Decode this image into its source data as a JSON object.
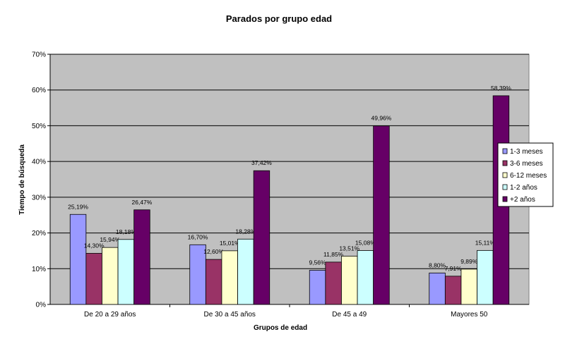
{
  "chart_data": {
    "type": "bar",
    "title": "Parados por grupo edad",
    "xlabel": "Grupos de edad",
    "ylabel": "Tiempo de búsqueda",
    "ylim": [
      0,
      70
    ],
    "yticks": [
      "0%",
      "10%",
      "20%",
      "30%",
      "40%",
      "50%",
      "60%",
      "70%"
    ],
    "grid": true,
    "legend_position": "right",
    "plot_background": "#c0c0c0",
    "categories": [
      "De 20 a 29 años",
      "De 30 a 45 años",
      "De 45 a 49",
      "Mayores 50"
    ],
    "series": [
      {
        "name": "1-3 meses",
        "color": "#9999ff",
        "values": [
          25.19,
          16.7,
          9.56,
          8.8
        ],
        "labels": [
          "25,19%",
          "16,70%",
          "9,56%",
          "8,80%"
        ]
      },
      {
        "name": "3-6 meses",
        "color": "#993366",
        "values": [
          14.3,
          12.6,
          11.85,
          7.91
        ],
        "labels": [
          "14,30%",
          "12,60%",
          "11,85%",
          "7,91%"
        ]
      },
      {
        "name": "6-12 meses",
        "color": "#ffffcc",
        "values": [
          15.94,
          15.01,
          13.51,
          9.89
        ],
        "labels": [
          "15,94%",
          "15,01%",
          "13,51%",
          "9,89%"
        ]
      },
      {
        "name": "1-2 años",
        "color": "#ccffff",
        "values": [
          18.18,
          18.28,
          15.08,
          15.11
        ],
        "labels": [
          "18,18%",
          "18,28%",
          "15,08%",
          "15,11%"
        ]
      },
      {
        "name": "+2 años",
        "color": "#660066",
        "values": [
          26.47,
          37.42,
          49.96,
          58.39
        ],
        "labels": [
          "26,47%",
          "37,42%",
          "49,96%",
          "58,39%"
        ]
      }
    ]
  }
}
